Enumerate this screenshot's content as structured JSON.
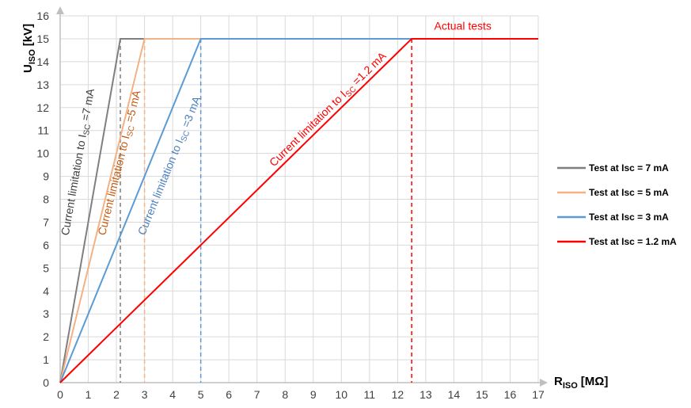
{
  "chart_data": {
    "type": "line",
    "xlabel_main": "R",
    "xlabel_sub": "ISO",
    "xlabel_unit": "[MΩ]",
    "ylabel_main": "U",
    "ylabel_sub": "ISO",
    "ylabel_unit": "[kV]",
    "xlim": [
      0,
      17
    ],
    "ylim": [
      0,
      16
    ],
    "x_ticks": [
      0,
      1,
      2,
      3,
      4,
      5,
      6,
      7,
      8,
      9,
      10,
      11,
      12,
      13,
      14,
      15,
      16,
      17
    ],
    "y_ticks": [
      0,
      1,
      2,
      3,
      4,
      5,
      6,
      7,
      8,
      9,
      10,
      11,
      12,
      13,
      14,
      15,
      16
    ],
    "grid": true,
    "legend_position": "right",
    "series": [
      {
        "name": "Test at Isc = 7 mA",
        "color": "#7f7f7f",
        "x": [
          0,
          2.14,
          3
        ],
        "y": [
          0,
          15,
          15
        ],
        "knee": 2.14
      },
      {
        "name": "Test at Isc = 5 mA",
        "color": "#f4b183",
        "x": [
          0,
          3,
          5
        ],
        "y": [
          0,
          15,
          15
        ],
        "knee": 3
      },
      {
        "name": "Test at Isc = 3 mA",
        "color": "#5b9bd5",
        "x": [
          0,
          5,
          12.5
        ],
        "y": [
          0,
          15,
          15
        ],
        "knee": 5
      },
      {
        "name": "Test at Isc = 1.2 mA",
        "color": "#ff0000",
        "x": [
          0,
          12.5,
          17
        ],
        "y": [
          0,
          15,
          15
        ],
        "knee": 12.5
      }
    ],
    "annotations": [
      {
        "pre": "Current limitation to I",
        "sub": "SC",
        "post": " =7 mA",
        "color": "#404040",
        "x": 0.3,
        "y": 6.4
      },
      {
        "pre": "Current limitation to I",
        "sub": "SC",
        "post": " =5 mA",
        "color": "#c55a11",
        "x": 1.6,
        "y": 6.4
      },
      {
        "pre": "Current limitation to I",
        "sub": "SC",
        "post": " =3 mA",
        "color": "#4a7fbf",
        "x": 3.0,
        "y": 6.4
      },
      {
        "pre": "Current limitation to I",
        "sub": "SC",
        "post": " =1.2 mA",
        "color": "#ff0000",
        "x": 7.6,
        "y": 9.4
      },
      {
        "pre": "Actual tests",
        "sub": "",
        "post": "",
        "color": "#ff0000",
        "x": 13.3,
        "y": 15.4
      }
    ]
  }
}
